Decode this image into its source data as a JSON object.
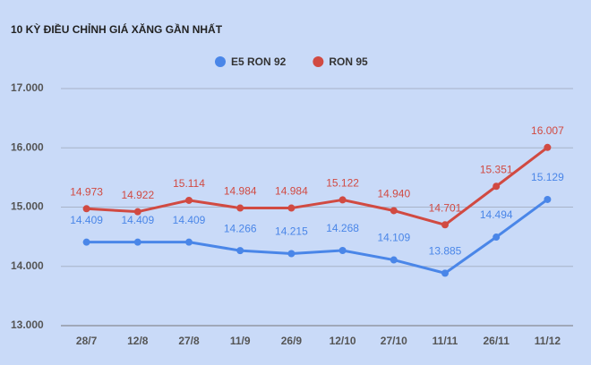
{
  "chart_data": {
    "type": "line",
    "title": "10 KỲ ĐIỀU CHỈNH GIÁ XĂNG GẦN NHẤT",
    "categories": [
      "28/7",
      "12/8",
      "27/8",
      "11/9",
      "26/9",
      "12/10",
      "27/10",
      "11/11",
      "26/11",
      "11/12"
    ],
    "series": [
      {
        "name": "E5 RON 92",
        "color": "#4a86e8",
        "values": [
          14409,
          14409,
          14409,
          14266,
          14215,
          14268,
          14109,
          13885,
          14494,
          15129
        ],
        "value_labels": [
          "14.409",
          "14.409",
          "14.409",
          "14.266",
          "14.215",
          "14.268",
          "14.109",
          "13.885",
          "14.494",
          "15.129"
        ]
      },
      {
        "name": "RON 95",
        "color": "#d14a42",
        "values": [
          14973,
          14922,
          15114,
          14984,
          14984,
          15122,
          14940,
          14701,
          15351,
          16007
        ],
        "value_labels": [
          "14.973",
          "14.922",
          "15.114",
          "14.984",
          "14.984",
          "15.122",
          "14.940",
          "14.701",
          "15.351",
          "16.007"
        ]
      }
    ],
    "ylim": [
      13000,
      17000
    ],
    "yticks": [
      {
        "value": 13000,
        "label": "13.000"
      },
      {
        "value": 14000,
        "label": "14.000"
      },
      {
        "value": 15000,
        "label": "15.000"
      },
      {
        "value": 16000,
        "label": "16.000"
      },
      {
        "value": 17000,
        "label": "17.000"
      }
    ],
    "grid": true
  }
}
